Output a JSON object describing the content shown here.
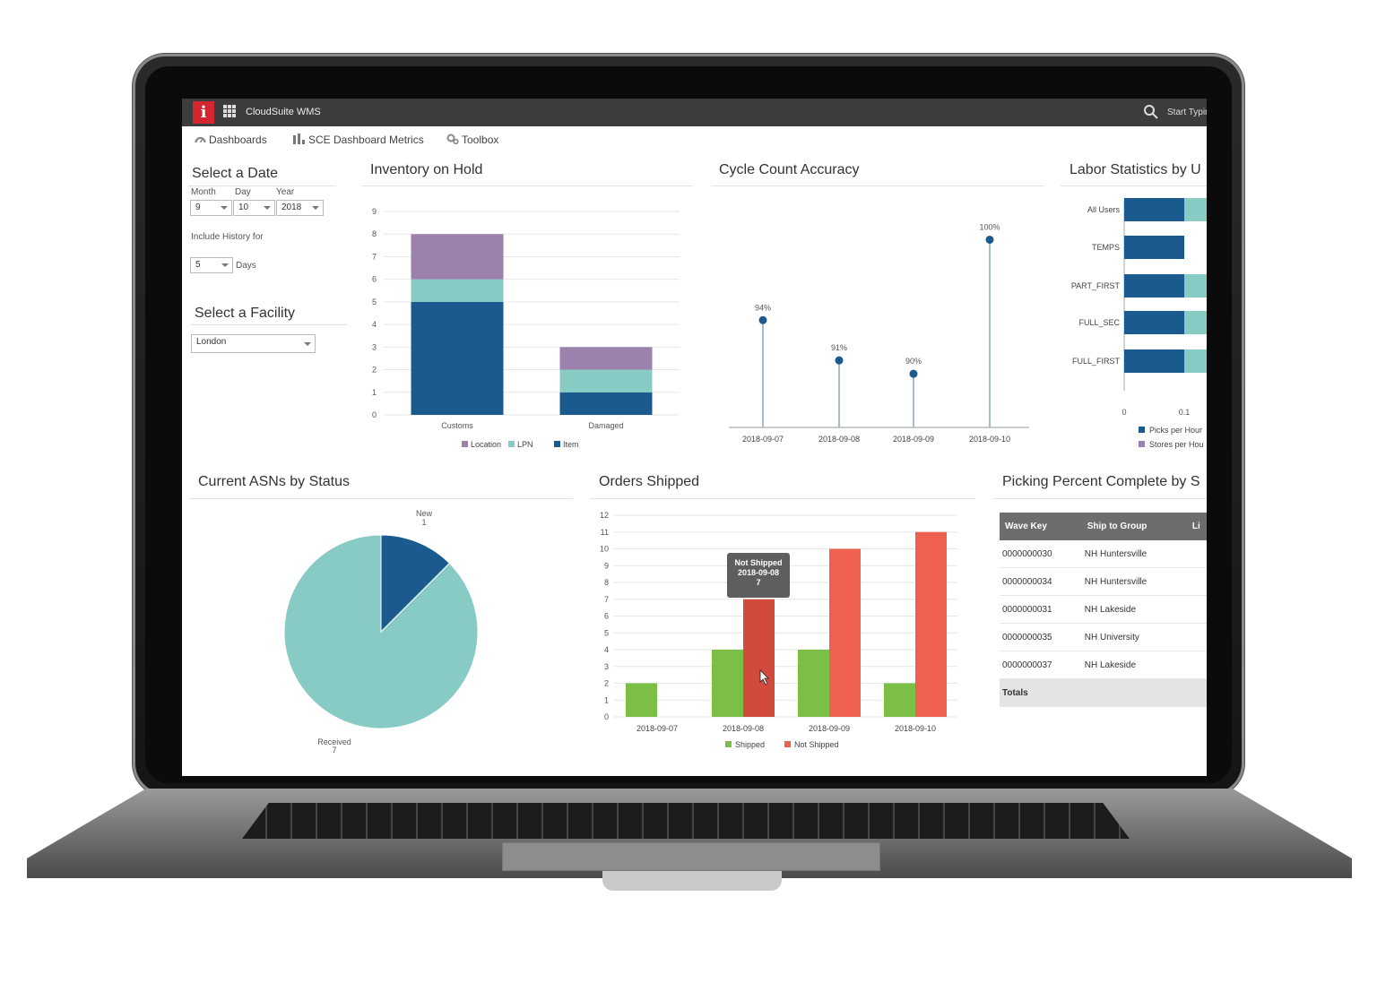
{
  "app": {
    "logo_letter": "i",
    "title": "CloudSuite WMS",
    "search_placeholder": "Start Typin"
  },
  "nav": [
    {
      "label": "Dashboards",
      "icon": "dashboard-icon"
    },
    {
      "label": "SCE Dashboard Metrics",
      "icon": "bar-chart-icon"
    },
    {
      "label": "Toolbox",
      "icon": "gears-icon"
    }
  ],
  "filters": {
    "date_title": "Select a Date",
    "month_label": "Month",
    "day_label": "Day",
    "year_label": "Year",
    "month_value": "9",
    "day_value": "10",
    "year_value": "2018",
    "history_label": "Include History for",
    "history_value": "5",
    "history_unit": "Days",
    "facility_title": "Select a Facility",
    "facility_value": "London"
  },
  "colors": {
    "item": "#1b5a8e",
    "lpn": "#88cbc5",
    "location": "#9b82ad",
    "shipped": "#7cbf46",
    "not_shipped": "#f06050",
    "not_shipped_hover": "#d14a3c",
    "asn_new": "#1b5a8e",
    "asn_received": "#88cbc5",
    "picks": "#1b5a8e",
    "stores": "#88cbc5"
  },
  "chart_data": [
    {
      "id": "inventory",
      "type": "bar",
      "title": "Inventory on Hold",
      "stacked": true,
      "categories": [
        "Customs",
        "Damaged"
      ],
      "series": [
        {
          "name": "Item",
          "values": [
            5,
            1
          ]
        },
        {
          "name": "LPN",
          "values": [
            1,
            1
          ]
        },
        {
          "name": "Location",
          "values": [
            2,
            1
          ]
        }
      ],
      "legend_order": [
        "Location",
        "LPN",
        "Item"
      ],
      "ylim": [
        0,
        9
      ],
      "yticks": [
        0,
        1,
        2,
        3,
        4,
        5,
        6,
        7,
        8,
        9
      ],
      "grid": true,
      "legend_position": "bottom"
    },
    {
      "id": "cycle",
      "type": "scatter",
      "title": "Cycle Count Accuracy",
      "x": [
        "2018-09-07",
        "2018-09-08",
        "2018-09-09",
        "2018-09-10"
      ],
      "values": [
        94,
        91,
        90,
        100
      ],
      "labels": [
        "94%",
        "91%",
        "90%",
        "100%"
      ],
      "ylim": [
        86,
        100.5
      ],
      "grid": false
    },
    {
      "id": "labor",
      "type": "bar",
      "title": "Labor Statistics by U",
      "orientation": "horizontal",
      "categories": [
        "All Users",
        "TEMPS",
        "PART_FIRST",
        "FULL_SEC",
        "FULL_FIRST"
      ],
      "series": [
        {
          "name": "Picks per Hour",
          "values": [
            0.1,
            0.1,
            0.1,
            0.1,
            0.1
          ]
        },
        {
          "name": "Stores per Hou",
          "values": [
            0.05,
            0,
            0.05,
            0.05,
            0.05
          ]
        }
      ],
      "xticks": [
        "0",
        "0.1"
      ],
      "legend_position": "bottom"
    },
    {
      "id": "asn",
      "type": "pie",
      "title": "Current ASNs by Status",
      "slices": [
        {
          "name": "New",
          "value": 1,
          "label": "1"
        },
        {
          "name": "Received",
          "value": 7,
          "label": "7"
        }
      ]
    },
    {
      "id": "orders",
      "type": "bar",
      "title": "Orders Shipped",
      "categories": [
        "2018-09-07",
        "2018-09-08",
        "2018-09-09",
        "2018-09-10"
      ],
      "series": [
        {
          "name": "Shipped",
          "values": [
            2,
            4,
            4,
            2
          ]
        },
        {
          "name": "Not Shipped",
          "values": [
            0,
            7,
            10,
            11
          ]
        }
      ],
      "ylim": [
        0,
        12
      ],
      "yticks": [
        0,
        1,
        2,
        3,
        4,
        5,
        6,
        7,
        8,
        9,
        10,
        11,
        12
      ],
      "grid": true,
      "legend_position": "bottom",
      "tooltip": {
        "series": "Not Shipped",
        "category": "2018-09-08",
        "value": "7"
      }
    }
  ],
  "picking": {
    "title": "Picking Percent Complete by S",
    "columns": [
      "Wave Key",
      "Ship to Group",
      "Li"
    ],
    "rows": [
      [
        "0000000030",
        "NH Huntersville"
      ],
      [
        "0000000034",
        "NH Huntersville"
      ],
      [
        "0000000031",
        "NH Lakeside"
      ],
      [
        "0000000035",
        "NH University"
      ],
      [
        "0000000037",
        "NH Lakeside"
      ]
    ],
    "totals_label": "Totals"
  }
}
